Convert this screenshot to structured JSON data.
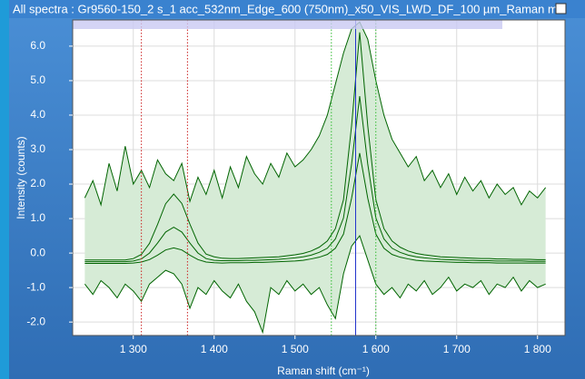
{
  "chart_data": {
    "type": "line",
    "title": "All spectra : Gr9560-150_2 s_1 acc_532nm_Edge_600 (750nm)_x50_VIS_LWD_DF_100 µm_Raman m",
    "x_label": "Raman shift (cm⁻¹)",
    "y_label": "Intensity (counts)",
    "x": [
      1240,
      1250,
      1260,
      1270,
      1280,
      1290,
      1300,
      1310,
      1320,
      1330,
      1340,
      1350,
      1360,
      1370,
      1380,
      1390,
      1400,
      1410,
      1420,
      1430,
      1440,
      1450,
      1460,
      1470,
      1480,
      1490,
      1500,
      1510,
      1520,
      1530,
      1540,
      1550,
      1560,
      1570,
      1580,
      1590,
      1600,
      1610,
      1620,
      1630,
      1640,
      1650,
      1660,
      1670,
      1680,
      1690,
      1700,
      1710,
      1720,
      1730,
      1740,
      1750,
      1760,
      1770,
      1780,
      1790,
      1800,
      1810
    ],
    "band": {
      "color": "#d6ebd6",
      "upper": [
        1.6,
        2.1,
        1.4,
        2.6,
        1.8,
        3.1,
        2.0,
        2.4,
        1.9,
        2.7,
        2.3,
        2.1,
        2.6,
        1.5,
        2.2,
        1.7,
        2.4,
        1.6,
        2.5,
        1.9,
        2.8,
        2.3,
        2.0,
        2.6,
        2.2,
        2.9,
        2.5,
        2.7,
        3.0,
        3.4,
        4.0,
        4.9,
        5.8,
        6.5,
        6.7,
        6.2,
        5.0,
        4.0,
        3.3,
        2.9,
        2.5,
        2.8,
        2.1,
        2.4,
        1.9,
        2.3,
        1.7,
        2.2,
        1.8,
        2.1,
        1.6,
        2.0,
        1.7,
        1.9,
        1.4,
        1.8,
        1.6,
        1.9
      ],
      "lower": [
        -0.9,
        -1.2,
        -0.8,
        -1.0,
        -1.3,
        -0.9,
        -1.1,
        -1.4,
        -0.9,
        -0.7,
        -0.5,
        -0.6,
        -0.9,
        -1.6,
        -1.0,
        -1.2,
        -0.8,
        -1.1,
        -1.3,
        -0.9,
        -1.4,
        -1.7,
        -2.3,
        -1.0,
        -1.2,
        -0.8,
        -1.1,
        -0.9,
        -1.2,
        -1.0,
        -1.5,
        -1.9,
        -0.6,
        0.2,
        0.5,
        -0.2,
        -0.9,
        -1.2,
        -1.0,
        -1.3,
        -0.9,
        -1.1,
        -0.8,
        -1.2,
        -1.0,
        -0.7,
        -1.1,
        -0.9,
        -1.0,
        -0.8,
        -1.2,
        -0.9,
        -1.0,
        -0.7,
        -1.1,
        -0.8,
        -1.0,
        -0.9
      ]
    },
    "series": [
      {
        "color": "#006400",
        "values": [
          -0.2,
          -0.2,
          -0.2,
          -0.2,
          -0.2,
          -0.2,
          -0.16,
          -0.04,
          0.28,
          0.83,
          1.43,
          1.71,
          1.44,
          0.84,
          0.29,
          -0.03,
          -0.11,
          -0.15,
          -0.16,
          -0.16,
          -0.15,
          -0.14,
          -0.13,
          -0.12,
          -0.11,
          -0.08,
          -0.05,
          -0.01,
          0.06,
          0.17,
          0.35,
          0.71,
          1.55,
          3.69,
          6.4,
          3.69,
          1.55,
          0.71,
          0.35,
          0.17,
          0.06,
          -0.01,
          -0.05,
          -0.08,
          -0.11,
          -0.12,
          -0.13,
          -0.14,
          -0.15,
          -0.16,
          -0.16,
          -0.17,
          -0.17,
          -0.18,
          -0.18,
          -0.18,
          -0.19,
          -0.19
        ]
      },
      {
        "color": "#006400",
        "values": [
          -0.25,
          -0.25,
          -0.25,
          -0.25,
          -0.25,
          -0.25,
          -0.23,
          -0.17,
          0.0,
          0.29,
          0.61,
          0.75,
          0.61,
          0.29,
          0.0,
          -0.16,
          -0.21,
          -0.22,
          -0.22,
          -0.22,
          -0.21,
          -0.21,
          -0.2,
          -0.19,
          -0.18,
          -0.16,
          -0.14,
          -0.11,
          -0.06,
          0.02,
          0.14,
          0.41,
          1.02,
          2.58,
          4.55,
          2.58,
          1.02,
          0.41,
          0.14,
          0.02,
          -0.06,
          -0.11,
          -0.14,
          -0.16,
          -0.18,
          -0.19,
          -0.2,
          -0.21,
          -0.21,
          -0.22,
          -0.22,
          -0.23,
          -0.23,
          -0.23,
          -0.23,
          -0.24,
          -0.24,
          -0.24
        ]
      },
      {
        "color": "#006400",
        "values": [
          -0.3,
          -0.3,
          -0.3,
          -0.3,
          -0.3,
          -0.3,
          -0.29,
          -0.26,
          -0.19,
          -0.06,
          0.09,
          0.15,
          0.09,
          -0.06,
          -0.19,
          -0.26,
          -0.28,
          -0.29,
          -0.28,
          -0.28,
          -0.28,
          -0.27,
          -0.27,
          -0.26,
          -0.25,
          -0.24,
          -0.23,
          -0.21,
          -0.17,
          -0.12,
          -0.04,
          0.14,
          0.55,
          1.59,
          2.9,
          1.59,
          0.55,
          0.14,
          -0.04,
          -0.12,
          -0.17,
          -0.21,
          -0.23,
          -0.24,
          -0.25,
          -0.26,
          -0.27,
          -0.27,
          -0.28,
          -0.28,
          -0.28,
          -0.29,
          -0.29,
          -0.29,
          -0.29,
          -0.29,
          -0.29,
          -0.29
        ]
      }
    ],
    "markers": [
      {
        "value": 1310,
        "color": "#cc2222",
        "style": "dotted"
      },
      {
        "value": 1367,
        "color": "#cc2222",
        "style": "dotted"
      },
      {
        "value": 1545,
        "color": "#33bb33",
        "style": "dotted"
      },
      {
        "value": 1600,
        "color": "#33bb33",
        "style": "dotted"
      },
      {
        "value": 1575,
        "color": "#2233cc",
        "style": "solid"
      }
    ],
    "xlim": [
      1225,
      1834
    ],
    "ylim": [
      -2.39,
      6.76
    ],
    "xticks": [
      {
        "value": 1300,
        "label": "1 300"
      },
      {
        "value": 1400,
        "label": "1 400"
      },
      {
        "value": 1500,
        "label": "1 500"
      },
      {
        "value": 1600,
        "label": "1 600"
      },
      {
        "value": 1700,
        "label": "1 700"
      },
      {
        "value": 1800,
        "label": "1 800"
      }
    ],
    "yticks": [
      {
        "value": -2,
        "label": "-2.0"
      },
      {
        "value": -1,
        "label": "-1.0"
      },
      {
        "value": 0,
        "label": "0.0"
      },
      {
        "value": 1,
        "label": "1.0"
      },
      {
        "value": 2,
        "label": "2.0"
      },
      {
        "value": 3,
        "label": "3.0"
      },
      {
        "value": 4,
        "label": "4.0"
      },
      {
        "value": 5,
        "label": "5.0"
      },
      {
        "value": 6,
        "label": "6.0"
      }
    ],
    "grid": true
  }
}
